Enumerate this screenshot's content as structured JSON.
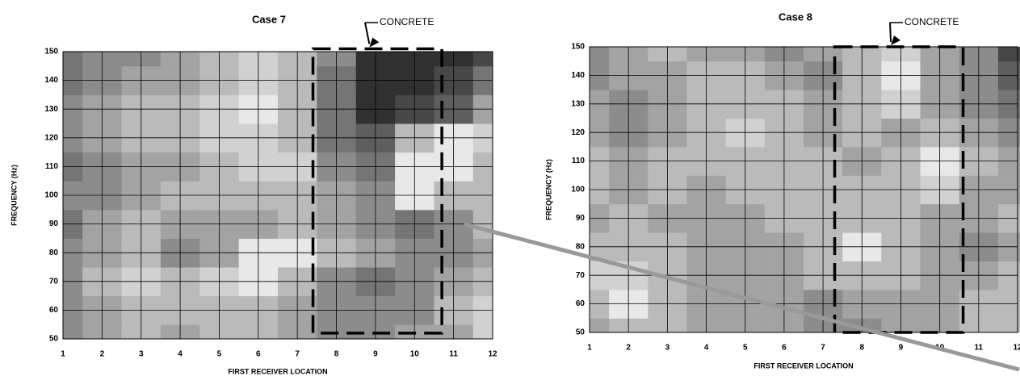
{
  "chart_data": [
    {
      "type": "contour",
      "title": "Case 7",
      "xlabel": "FIRST RECEIVER LOCATION",
      "ylabel": "FREQUENCY (Hz)",
      "annotation": "CONCRETE",
      "region": {
        "x": [
          7.4,
          10.7
        ],
        "y": [
          52,
          151
        ]
      },
      "x": [
        1,
        2,
        3,
        4,
        5,
        6,
        7,
        8,
        9,
        10,
        11,
        12
      ],
      "y": [
        50,
        60,
        70,
        80,
        90,
        100,
        110,
        120,
        130,
        140,
        150
      ],
      "z": [
        [
          0.5,
          0.4,
          0.3,
          0.4,
          0.3,
          0.3,
          0.4,
          0.5,
          0.5,
          0.4,
          0.4,
          0.2
        ],
        [
          0.5,
          0.4,
          0.3,
          0.3,
          0.3,
          0.3,
          0.4,
          0.5,
          0.5,
          0.5,
          0.3,
          0.2
        ],
        [
          0.5,
          0.3,
          0.2,
          0.3,
          0.2,
          0.1,
          0.3,
          0.5,
          0.6,
          0.5,
          0.4,
          0.3
        ],
        [
          0.5,
          0.4,
          0.3,
          0.5,
          0.4,
          0.1,
          0.1,
          0.3,
          0.4,
          0.5,
          0.5,
          0.4
        ],
        [
          0.6,
          0.4,
          0.3,
          0.4,
          0.4,
          0.4,
          0.3,
          0.4,
          0.5,
          0.6,
          0.5,
          0.3
        ],
        [
          0.5,
          0.5,
          0.4,
          0.3,
          0.3,
          0.3,
          0.3,
          0.4,
          0.5,
          0.1,
          0.3,
          0.3
        ],
        [
          0.6,
          0.5,
          0.4,
          0.4,
          0.3,
          0.2,
          0.2,
          0.5,
          0.6,
          0.1,
          0.1,
          0.3
        ],
        [
          0.5,
          0.4,
          0.3,
          0.3,
          0.2,
          0.2,
          0.3,
          0.6,
          0.7,
          0.3,
          0.1,
          0.2
        ],
        [
          0.5,
          0.4,
          0.3,
          0.3,
          0.2,
          0.1,
          0.3,
          0.6,
          0.9,
          0.8,
          0.7,
          0.4
        ],
        [
          0.6,
          0.5,
          0.4,
          0.4,
          0.3,
          0.2,
          0.3,
          0.6,
          0.9,
          0.9,
          0.8,
          0.6
        ],
        [
          0.6,
          0.5,
          0.5,
          0.4,
          0.3,
          0.2,
          0.3,
          0.5,
          0.9,
          0.9,
          0.9,
          0.8
        ]
      ],
      "xlim": [
        1,
        12
      ],
      "ylim": [
        50,
        150
      ],
      "xticks": [
        1,
        2,
        3,
        4,
        5,
        6,
        7,
        8,
        9,
        10,
        11,
        12
      ],
      "yticks": [
        50,
        60,
        70,
        80,
        90,
        100,
        110,
        120,
        130,
        140,
        150
      ],
      "grid": true
    },
    {
      "type": "contour",
      "title": "Case 8",
      "xlabel": "FIRST RECEIVER LOCATION",
      "ylabel": "FREQUENCY (Hz)",
      "annotation": "CONCRETE",
      "region": {
        "x": [
          7.3,
          10.6
        ],
        "y": [
          50,
          150
        ]
      },
      "x": [
        1,
        2,
        3,
        4,
        5,
        6,
        7,
        8,
        9,
        10,
        11,
        12
      ],
      "y": [
        50,
        60,
        70,
        80,
        90,
        100,
        110,
        120,
        130,
        140,
        150
      ],
      "z": [
        [
          0.4,
          0.3,
          0.3,
          0.4,
          0.4,
          0.4,
          0.5,
          0.5,
          0.4,
          0.4,
          0.3,
          0.3
        ],
        [
          0.3,
          0.1,
          0.3,
          0.4,
          0.4,
          0.4,
          0.5,
          0.4,
          0.4,
          0.4,
          0.3,
          0.3
        ],
        [
          0.2,
          0.2,
          0.3,
          0.4,
          0.4,
          0.4,
          0.3,
          0.3,
          0.3,
          0.4,
          0.4,
          0.3
        ],
        [
          0.3,
          0.3,
          0.3,
          0.4,
          0.4,
          0.4,
          0.3,
          0.1,
          0.3,
          0.4,
          0.5,
          0.4
        ],
        [
          0.4,
          0.3,
          0.4,
          0.4,
          0.4,
          0.3,
          0.3,
          0.3,
          0.3,
          0.4,
          0.4,
          0.3
        ],
        [
          0.3,
          0.4,
          0.3,
          0.4,
          0.3,
          0.3,
          0.3,
          0.3,
          0.3,
          0.2,
          0.4,
          0.4
        ],
        [
          0.3,
          0.4,
          0.3,
          0.3,
          0.3,
          0.3,
          0.3,
          0.4,
          0.3,
          0.1,
          0.3,
          0.4
        ],
        [
          0.4,
          0.5,
          0.4,
          0.3,
          0.2,
          0.3,
          0.4,
          0.3,
          0.4,
          0.3,
          0.4,
          0.5
        ],
        [
          0.4,
          0.5,
          0.4,
          0.3,
          0.3,
          0.3,
          0.4,
          0.3,
          0.2,
          0.4,
          0.5,
          0.6
        ],
        [
          0.5,
          0.4,
          0.4,
          0.3,
          0.3,
          0.4,
          0.5,
          0.3,
          0.1,
          0.4,
          0.5,
          0.7
        ],
        [
          0.5,
          0.4,
          0.3,
          0.4,
          0.4,
          0.5,
          0.4,
          0.3,
          0.2,
          0.4,
          0.5,
          0.8
        ]
      ],
      "xlim": [
        1,
        12
      ],
      "ylim": [
        50,
        150
      ],
      "xticks": [
        1,
        2,
        3,
        4,
        5,
        6,
        7,
        8,
        9,
        10,
        11,
        12
      ],
      "yticks": [
        50,
        60,
        70,
        80,
        90,
        100,
        110,
        120,
        130,
        140,
        150
      ],
      "grid": true
    }
  ]
}
